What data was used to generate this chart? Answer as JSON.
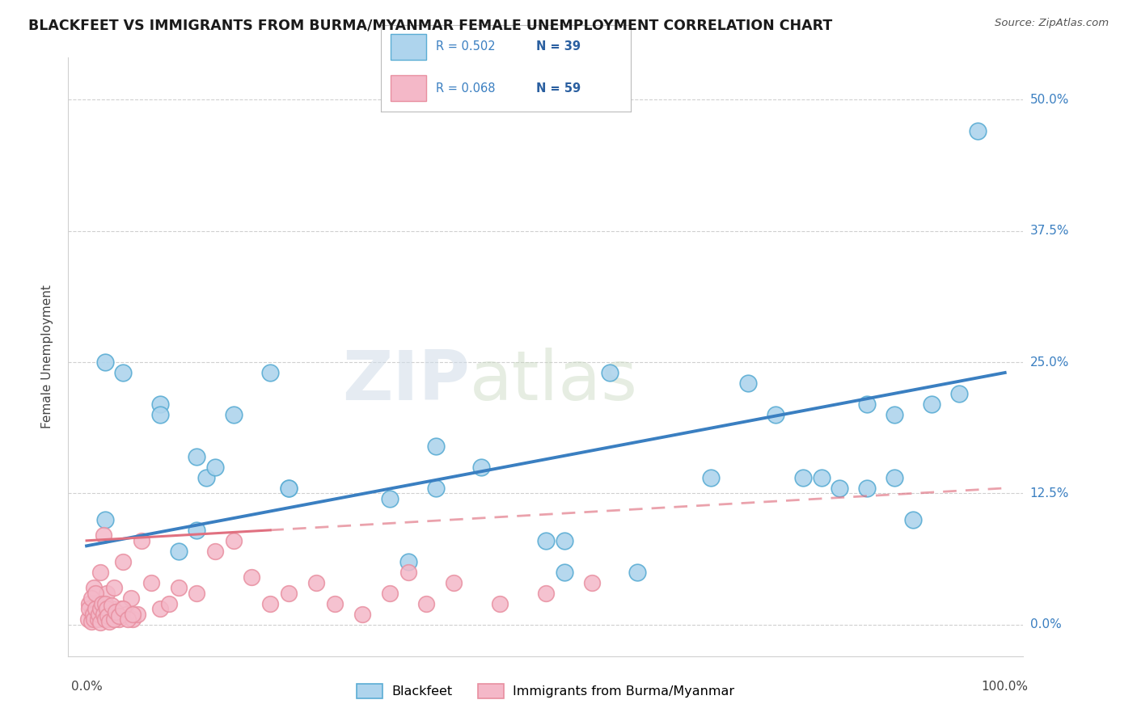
{
  "title": "BLACKFEET VS IMMIGRANTS FROM BURMA/MYANMAR FEMALE UNEMPLOYMENT CORRELATION CHART",
  "source": "Source: ZipAtlas.com",
  "ylabel": "Female Unemployment",
  "watermark_zip": "ZIP",
  "watermark_atlas": "atlas",
  "ytick_vals": [
    0.0,
    12.5,
    25.0,
    37.5,
    50.0
  ],
  "xlim": [
    -2,
    102
  ],
  "ylim": [
    -3,
    54
  ],
  "legend_labels": [
    "Blackfeet",
    "Immigrants from Burma/Myanmar"
  ],
  "color_blue_fill": "#aed4ed",
  "color_blue_edge": "#5badd4",
  "color_pink_fill": "#f4b8c8",
  "color_pink_edge": "#e88fa0",
  "color_blue_line": "#3a7fc1",
  "color_pink_line": "#e07080",
  "background": "#ffffff",
  "title_fontsize": 12.5,
  "blue_scatter_x": [
    2,
    4,
    8,
    8,
    12,
    13,
    14,
    16,
    20,
    22,
    33,
    38,
    43,
    52,
    57,
    68,
    72,
    75,
    78,
    80,
    82,
    85,
    88,
    90,
    92,
    97
  ],
  "blue_scatter_y": [
    25,
    24,
    21,
    20,
    16,
    14,
    15,
    20,
    24,
    13,
    12,
    17,
    15,
    8,
    24,
    14,
    23,
    20,
    14,
    14,
    13,
    21,
    20,
    10,
    21,
    47
  ],
  "blue_scatter_x2": [
    2,
    10,
    12,
    22,
    35,
    38,
    50,
    52,
    60,
    85,
    88,
    95
  ],
  "blue_scatter_y2": [
    10,
    7,
    9,
    13,
    6,
    13,
    8,
    5,
    5,
    13,
    14,
    22
  ],
  "pink_scatter_x": [
    0.3,
    0.5,
    0.8,
    1.0,
    1.2,
    1.5,
    1.8,
    2.0,
    2.2,
    2.5,
    2.8,
    3.0,
    3.3,
    3.5,
    3.8,
    4.0,
    4.3,
    4.8,
    5.0,
    5.5,
    6.0,
    7.0,
    8.0,
    9.0,
    10.0,
    12.0,
    14.0,
    16.0,
    18.0,
    20.0,
    22.0,
    25.0,
    27.0,
    30.0,
    33.0,
    35.0,
    37.0,
    40.0,
    45.0,
    50.0,
    55.0
  ],
  "pink_scatter_y": [
    2.0,
    1.0,
    3.5,
    0.5,
    2.0,
    5.0,
    8.5,
    1.5,
    3.0,
    0.5,
    1.5,
    3.5,
    1.0,
    0.5,
    1.5,
    6.0,
    1.0,
    2.5,
    0.5,
    1.0,
    8.0,
    4.0,
    1.5,
    2.0,
    3.5,
    3.0,
    7.0,
    8.0,
    4.5,
    2.0,
    3.0,
    4.0,
    2.0,
    1.0,
    3.0,
    5.0,
    2.0,
    4.0,
    2.0,
    3.0,
    4.0
  ],
  "pink_dense_x": [
    0.2,
    0.3,
    0.5,
    0.5,
    0.7,
    0.8,
    1.0,
    1.0,
    1.2,
    1.3,
    1.5,
    1.5,
    1.7,
    1.8,
    2.0,
    2.0,
    2.2,
    2.3,
    2.5,
    2.7,
    3.0,
    3.2,
    3.5,
    4.0,
    4.5,
    5.0
  ],
  "pink_dense_y": [
    0.5,
    1.5,
    0.3,
    2.5,
    1.0,
    0.5,
    1.5,
    3.0,
    0.5,
    1.0,
    1.5,
    0.2,
    2.0,
    1.0,
    0.5,
    2.0,
    1.5,
    0.8,
    0.3,
    1.8,
    0.5,
    1.2,
    0.8,
    1.5,
    0.5,
    1.0
  ],
  "blue_line_x0": 0,
  "blue_line_x1": 100,
  "blue_line_y0": 7.5,
  "blue_line_y1": 24.0,
  "pink_line_x0": 0,
  "pink_line_solid_x1": 20,
  "pink_line_x1": 100,
  "pink_line_y0": 8.0,
  "pink_line_y1": 13.0
}
